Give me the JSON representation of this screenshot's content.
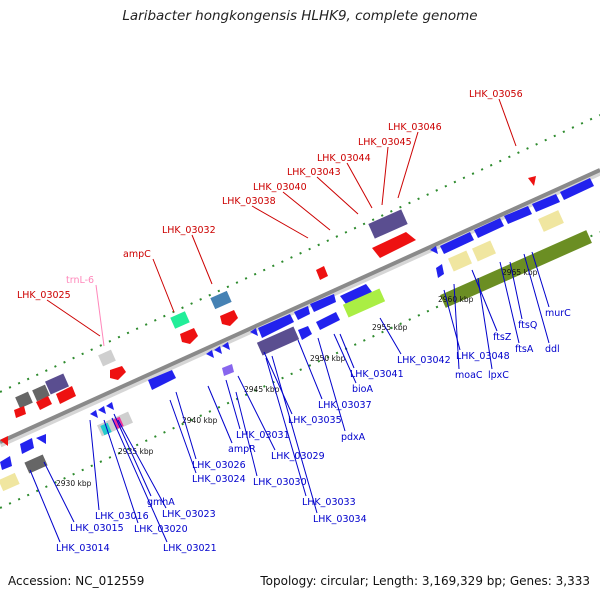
{
  "title": "Laribacter hongkongensis HLHK9, complete genome",
  "footer": {
    "accession": "Accession: NC_012559",
    "topology": "Topology: circular; Length: 3,169,329 bp; Genes: 3,333"
  },
  "colors": {
    "top_label": "#cc0000",
    "trna_label": "#ff88bb",
    "bottom_label": "#0000cc",
    "backbone": "#8a8a8a",
    "tick": "#2e8b2e"
  },
  "ticks": [
    "2930 kbp",
    "2935 kbp",
    "2940 kbp",
    "2945 kbp",
    "2950 kbp",
    "2955 kbp",
    "2960 kbp",
    "2965 kbp"
  ],
  "top_labels": [
    {
      "text": "LHK_03025",
      "color": "red"
    },
    {
      "text": "trnL-6",
      "color": "pink"
    },
    {
      "text": "ampC",
      "color": "red"
    },
    {
      "text": "LHK_03032",
      "color": "red"
    },
    {
      "text": "LHK_03038",
      "color": "red"
    },
    {
      "text": "LHK_03040",
      "color": "red"
    },
    {
      "text": "LHK_03043",
      "color": "red"
    },
    {
      "text": "LHK_03044",
      "color": "red"
    },
    {
      "text": "LHK_03045",
      "color": "red"
    },
    {
      "text": "LHK_03046",
      "color": "red"
    },
    {
      "text": "LHK_03056",
      "color": "red"
    }
  ],
  "bottom_labels": [
    "LHK_03014",
    "LHK_03015",
    "LHK_03016",
    "LHK_03020",
    "LHK_03021",
    "gmhA",
    "LHK_03023",
    "LHK_03024",
    "LHK_03026",
    "ampR",
    "LHK_03031",
    "LHK_03029",
    "LHK_03030",
    "LHK_03035",
    "LHK_03033",
    "LHK_03034",
    "LHK_03037",
    "pdxA",
    "bioA",
    "LHK_03041",
    "LHK_03042",
    "moaC",
    "LHK_03048",
    "lpxC",
    "ftsZ",
    "ftsA",
    "ftsQ",
    "ddl",
    "murC"
  ]
}
